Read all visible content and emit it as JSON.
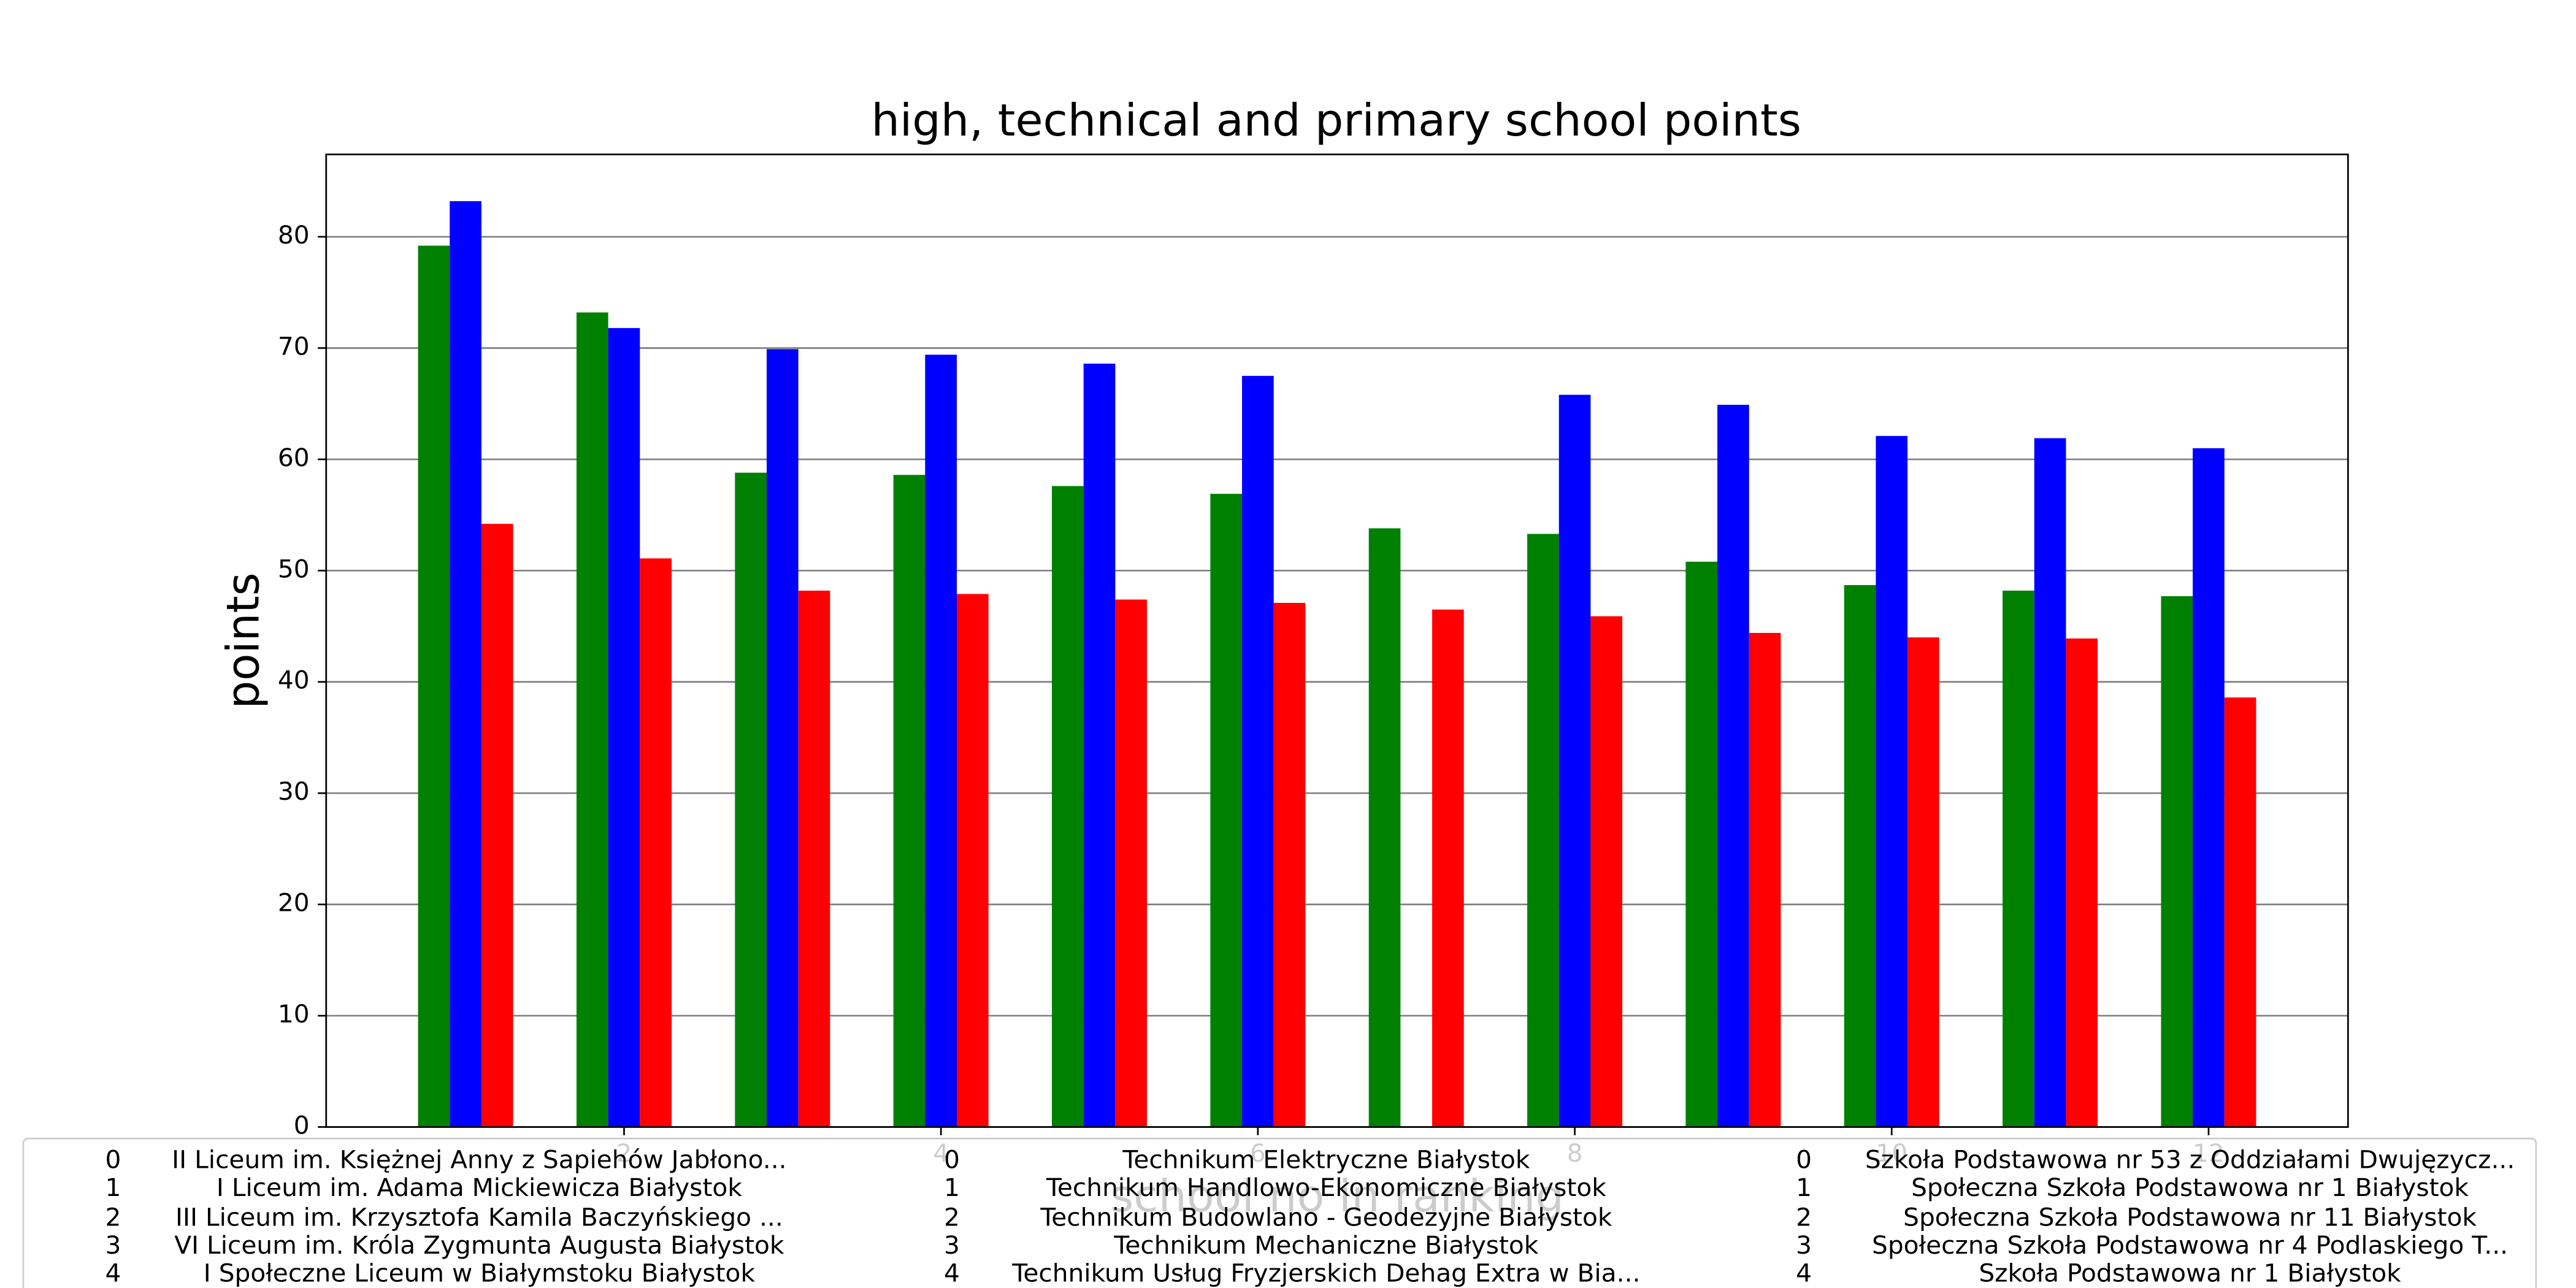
{
  "chart_data": {
    "type": "bar",
    "title": "high, technical and primary school points",
    "y_label": "points",
    "x_label": "school no in ranking",
    "x": [
      1,
      2,
      3,
      4,
      5,
      6,
      7,
      8,
      9,
      10,
      11,
      12
    ],
    "series": [
      {
        "color": "#008000",
        "values": [
          79.2,
          73.2,
          58.8,
          58.6,
          57.6,
          56.9,
          53.8,
          53.3,
          50.8,
          48.7,
          48.2,
          47.7
        ]
      },
      {
        "color": "#0000ff",
        "values": [
          83.2,
          71.8,
          69.9,
          69.4,
          68.6,
          67.5,
          null,
          65.8,
          64.9,
          62.1,
          61.9,
          61.0
        ]
      },
      {
        "color": "#ff0000",
        "values": [
          54.2,
          51.1,
          48.2,
          47.9,
          47.4,
          47.1,
          46.5,
          45.9,
          44.4,
          44.0,
          43.9,
          38.6
        ]
      }
    ],
    "xlim": [
      0.12,
      12.88
    ],
    "xticks": [
      2,
      4,
      6,
      8,
      10,
      12
    ],
    "ylim": [
      0,
      87.4
    ],
    "yticks": [
      0,
      10,
      20,
      30,
      40,
      50,
      60,
      70,
      80
    ],
    "grid": true,
    "legend_table": [
      {
        "index": [
          0,
          1,
          2,
          3,
          4
        ],
        "names": [
          "II Liceum im. Księżnej Anny z Sapiehów Jabłono...",
          "I Liceum im. Adama Mickiewicza Białystok",
          "III Liceum im. Krzysztofa Kamila Baczyńskiego ...",
          "VI Liceum im. Króla Zygmunta Augusta Białystok",
          "I Społeczne Liceum w Białymstoku Białystok"
        ]
      },
      {
        "index": [
          0,
          1,
          2,
          3,
          4
        ],
        "names": [
          "Technikum Elektryczne Białystok",
          "Technikum Handlowo-Ekonomiczne Białystok",
          "Technikum Budowlano - Geodezyjne Białystok",
          "Technikum Mechaniczne Białystok",
          "Technikum Usług Fryzjerskich Dehag Extra w Bia..."
        ]
      },
      {
        "index": [
          0,
          1,
          2,
          3,
          4
        ],
        "names": [
          "Szkoła Podstawowa nr 53 z Oddziałami Dwujęzycz...",
          "Społeczna Szkoła Podstawowa nr 1 Białystok",
          "Społeczna Szkoła Podstawowa nr 11 Białystok",
          "Społeczna Szkoła Podstawowa nr 4 Podlaskiego T...",
          "Szkoła Podstawowa nr 1 Białystok"
        ]
      }
    ]
  }
}
